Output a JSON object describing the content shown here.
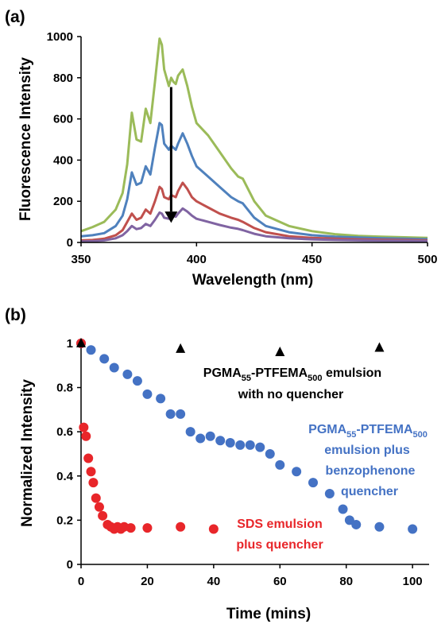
{
  "chart_data": [
    {
      "panel": "(a)",
      "type": "line",
      "xlabel": "Wavelength (nm)",
      "ylabel": "Fluorescence Intensity",
      "xlim": [
        350,
        500
      ],
      "ylim": [
        0,
        1000
      ],
      "xticks": [
        350,
        400,
        450,
        500
      ],
      "yticks": [
        0,
        200,
        400,
        600,
        800,
        1000
      ],
      "grid": false,
      "legend": "none",
      "annotation": "downward arrow near 389 nm indicating decreasing intensity",
      "series": [
        {
          "color": "#9BBB59",
          "x": [
            350,
            355,
            360,
            365,
            368,
            370,
            372,
            374,
            376,
            378,
            380,
            382,
            384,
            385,
            386,
            388,
            389,
            390,
            391,
            392,
            394,
            396,
            398,
            400,
            405,
            410,
            415,
            418,
            420,
            425,
            430,
            440,
            450,
            460,
            470,
            480,
            490,
            500
          ],
          "values": [
            55,
            75,
            100,
            160,
            240,
            380,
            630,
            500,
            490,
            650,
            580,
            780,
            990,
            960,
            840,
            760,
            800,
            780,
            770,
            810,
            840,
            760,
            660,
            580,
            520,
            440,
            360,
            320,
            310,
            200,
            130,
            80,
            55,
            40,
            32,
            28,
            25,
            22
          ]
        },
        {
          "color": "#4F81BD",
          "x": [
            350,
            355,
            360,
            365,
            368,
            370,
            372,
            374,
            376,
            378,
            380,
            382,
            384,
            385,
            386,
            388,
            389,
            390,
            391,
            392,
            394,
            396,
            398,
            400,
            405,
            410,
            415,
            418,
            420,
            425,
            430,
            440,
            450,
            460,
            470,
            480,
            490,
            500
          ],
          "values": [
            30,
            35,
            45,
            80,
            130,
            210,
            340,
            280,
            290,
            370,
            330,
            460,
            580,
            570,
            480,
            450,
            470,
            460,
            450,
            480,
            530,
            480,
            420,
            370,
            320,
            270,
            220,
            200,
            190,
            120,
            80,
            50,
            35,
            28,
            24,
            20,
            18,
            16
          ]
        },
        {
          "color": "#C0504D",
          "x": [
            350,
            355,
            360,
            365,
            368,
            370,
            372,
            374,
            376,
            378,
            380,
            382,
            384,
            385,
            386,
            388,
            389,
            390,
            391,
            392,
            394,
            396,
            398,
            400,
            405,
            410,
            415,
            418,
            420,
            425,
            430,
            440,
            450,
            460,
            470,
            480,
            490,
            500
          ],
          "values": [
            10,
            12,
            18,
            35,
            60,
            100,
            140,
            110,
            120,
            160,
            140,
            200,
            270,
            260,
            220,
            210,
            230,
            225,
            220,
            250,
            290,
            260,
            220,
            200,
            170,
            140,
            120,
            110,
            100,
            70,
            50,
            30,
            22,
            18,
            15,
            13,
            12,
            10
          ]
        },
        {
          "color": "#8064A2",
          "x": [
            350,
            355,
            360,
            365,
            368,
            370,
            372,
            374,
            376,
            378,
            380,
            382,
            384,
            385,
            386,
            388,
            389,
            390,
            391,
            392,
            394,
            396,
            398,
            400,
            405,
            410,
            415,
            418,
            420,
            425,
            430,
            440,
            450,
            460,
            470,
            480,
            490,
            500
          ],
          "values": [
            5,
            6,
            10,
            20,
            35,
            55,
            80,
            65,
            70,
            90,
            80,
            110,
            145,
            140,
            120,
            115,
            130,
            128,
            125,
            140,
            165,
            150,
            130,
            115,
            100,
            85,
            72,
            66,
            60,
            42,
            30,
            20,
            15,
            12,
            10,
            9,
            8,
            7
          ]
        }
      ]
    },
    {
      "panel": "(b)",
      "type": "scatter",
      "xlabel": "Time (mins)",
      "ylabel": "Normalized Intensity",
      "xlim": [
        0,
        105
      ],
      "ylim": [
        0,
        1.05
      ],
      "xticks": [
        0,
        20,
        40,
        60,
        80,
        100
      ],
      "yticks": [
        0,
        0.2,
        0.4,
        0.6,
        0.8,
        1
      ],
      "grid": false,
      "legend": "none",
      "series": [
        {
          "marker": "triangle",
          "color": "#000000",
          "label_lines": [
            "PGMA55-PTFEMA500 emulsion",
            "with no quencher"
          ],
          "x": [
            0,
            30,
            60,
            90
          ],
          "values": [
            1,
            0.975,
            0.96,
            0.98
          ]
        },
        {
          "marker": "circle",
          "color": "#4472C4",
          "label_lines": [
            "PGMA55-PTFEMA500",
            "emulsion plus",
            "benzophenone",
            "quencher"
          ],
          "x": [
            0,
            3,
            7,
            10,
            14,
            17,
            20,
            24,
            27,
            30,
            33,
            36,
            39,
            42,
            45,
            48,
            51,
            54,
            57,
            60,
            65,
            70,
            75,
            79,
            81,
            83,
            90,
            100
          ],
          "values": [
            1,
            0.97,
            0.93,
            0.89,
            0.86,
            0.83,
            0.77,
            0.75,
            0.68,
            0.68,
            0.6,
            0.57,
            0.58,
            0.56,
            0.55,
            0.54,
            0.54,
            0.53,
            0.5,
            0.45,
            0.42,
            0.37,
            0.32,
            0.25,
            0.2,
            0.18,
            0.17,
            0.16
          ]
        },
        {
          "marker": "circle",
          "color": "#E8262A",
          "label_lines": [
            "SDS emulsion",
            "plus quencher"
          ],
          "x": [
            0,
            0.8,
            1.5,
            2.2,
            3,
            3.7,
            4.5,
            5.5,
            6.5,
            8,
            9,
            10,
            11,
            12,
            13,
            15,
            20,
            30,
            40
          ],
          "values": [
            1,
            0.62,
            0.58,
            0.48,
            0.42,
            0.37,
            0.3,
            0.26,
            0.22,
            0.18,
            0.17,
            0.16,
            0.17,
            0.16,
            0.17,
            0.165,
            0.165,
            0.17,
            0.16
          ]
        }
      ]
    }
  ],
  "annotations": {
    "no_quencher": {
      "l1_pre": "PGMA",
      "l1_sub1": "55",
      "l1_mid": "-PTFEMA",
      "l1_sub2": "500",
      "l1_post": " emulsion",
      "l2": "with no quencher"
    },
    "benzophenone": {
      "l1_pre": "PGMA",
      "l1_sub1": "55",
      "l1_mid": "-PTFEMA",
      "l1_sub2": "500",
      "l2": "emulsion plus",
      "l3": "benzophenone",
      "l4": "quencher"
    },
    "sds": {
      "l1": "SDS emulsion",
      "l2": "plus quencher"
    }
  }
}
